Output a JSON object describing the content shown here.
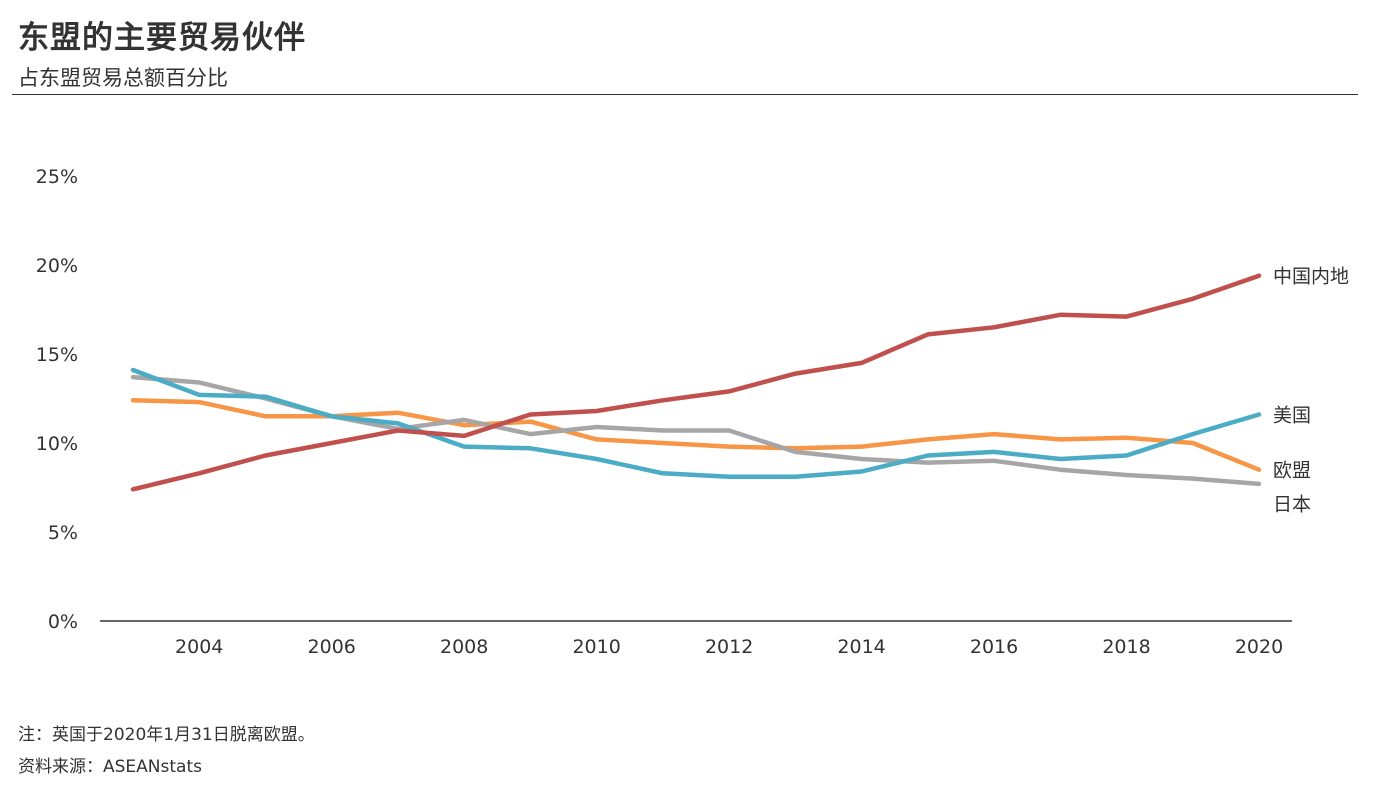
{
  "header": {
    "title": "东盟的主要贸易伙伴",
    "subtitle": "占东盟贸易总额百分比"
  },
  "footer": {
    "note": "注：英国于2020年1月31日脱离欧盟。",
    "source": "资料来源：ASEANstats"
  },
  "chart_data": {
    "type": "line",
    "title": "东盟的主要贸易伙伴",
    "subtitle": "占东盟贸易总额百分比",
    "x": [
      2003,
      2004,
      2005,
      2006,
      2007,
      2008,
      2009,
      2010,
      2011,
      2012,
      2013,
      2014,
      2015,
      2016,
      2017,
      2018,
      2019,
      2020
    ],
    "x_tick_labels": [
      "2004",
      "2006",
      "2008",
      "2010",
      "2012",
      "2014",
      "2016",
      "2018",
      "2020"
    ],
    "y_tick_labels": [
      "0%",
      "5%",
      "10%",
      "15%",
      "20%",
      "25%"
    ],
    "ylim": [
      0,
      25
    ],
    "grid": false,
    "legend": "direct labels at line ends (right)",
    "series": [
      {
        "name": "中国内地",
        "color": "#c0504d",
        "values": [
          7.4,
          8.3,
          9.3,
          10.0,
          10.7,
          10.4,
          11.6,
          11.8,
          12.4,
          12.9,
          13.9,
          14.5,
          16.1,
          16.5,
          17.2,
          17.1,
          18.1,
          19.4
        ]
      },
      {
        "name": "美国",
        "color": "#4bacc6",
        "values": [
          14.1,
          12.7,
          12.6,
          11.5,
          11.1,
          9.8,
          9.7,
          9.1,
          8.3,
          8.1,
          8.1,
          8.4,
          9.3,
          9.5,
          9.1,
          9.3,
          10.5,
          11.6
        ]
      },
      {
        "name": "欧盟",
        "color": "#f79646",
        "values": [
          12.4,
          12.3,
          11.5,
          11.5,
          11.7,
          11.0,
          11.2,
          10.2,
          10.0,
          9.8,
          9.7,
          9.8,
          10.2,
          10.5,
          10.2,
          10.3,
          10.0,
          8.5
        ]
      },
      {
        "name": "日本",
        "color": "#a6a6a6",
        "values": [
          13.7,
          13.4,
          12.5,
          11.5,
          10.8,
          11.3,
          10.5,
          10.9,
          10.7,
          10.7,
          9.5,
          9.1,
          8.9,
          9.0,
          8.5,
          8.2,
          8.0,
          7.7
        ]
      }
    ]
  }
}
